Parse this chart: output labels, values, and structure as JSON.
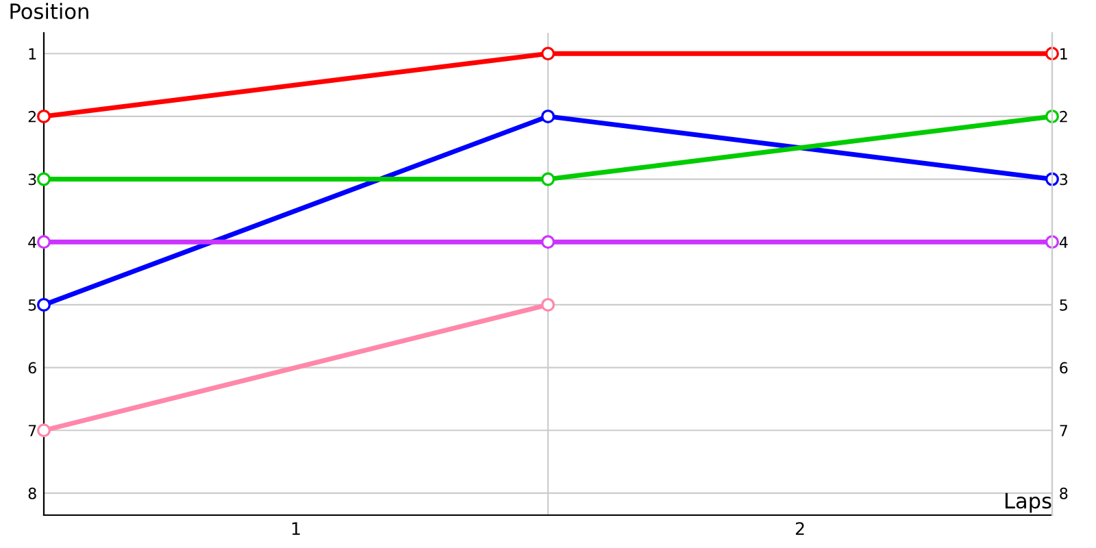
{
  "chart_data": {
    "type": "line",
    "xlabel": "Laps",
    "ylabel": "Position",
    "x": [
      0,
      1,
      2
    ],
    "series": [
      {
        "color": "#ff0000",
        "values": [
          2,
          1,
          1
        ]
      },
      {
        "color": "#0000ff",
        "values": [
          5,
          2,
          3
        ]
      },
      {
        "color": "#00cc00",
        "values": [
          3,
          3,
          2
        ]
      },
      {
        "color": "#cc33ff",
        "values": [
          4,
          4,
          4
        ]
      },
      {
        "color": "#ff88aa",
        "values": [
          7,
          5,
          null
        ]
      }
    ],
    "xlim": [
      0,
      2
    ],
    "xticks": [
      {
        "value": 0.5,
        "label": "1"
      },
      {
        "value": 1.5,
        "label": "2"
      }
    ],
    "ylim": [
      8.35,
      0.67
    ],
    "yticks": [
      1,
      2,
      3,
      4,
      5,
      6,
      7,
      8
    ],
    "y2lim": [
      8.35,
      0.67
    ],
    "y2ticks": [
      1,
      2,
      3,
      4,
      5,
      6,
      7,
      8
    ],
    "ref_lines": [
      {
        "axis": "x",
        "value": 1,
        "color": "#cccccc"
      }
    ],
    "grid": "y",
    "marker": "circle",
    "line_style": "solid",
    "legend": false
  }
}
